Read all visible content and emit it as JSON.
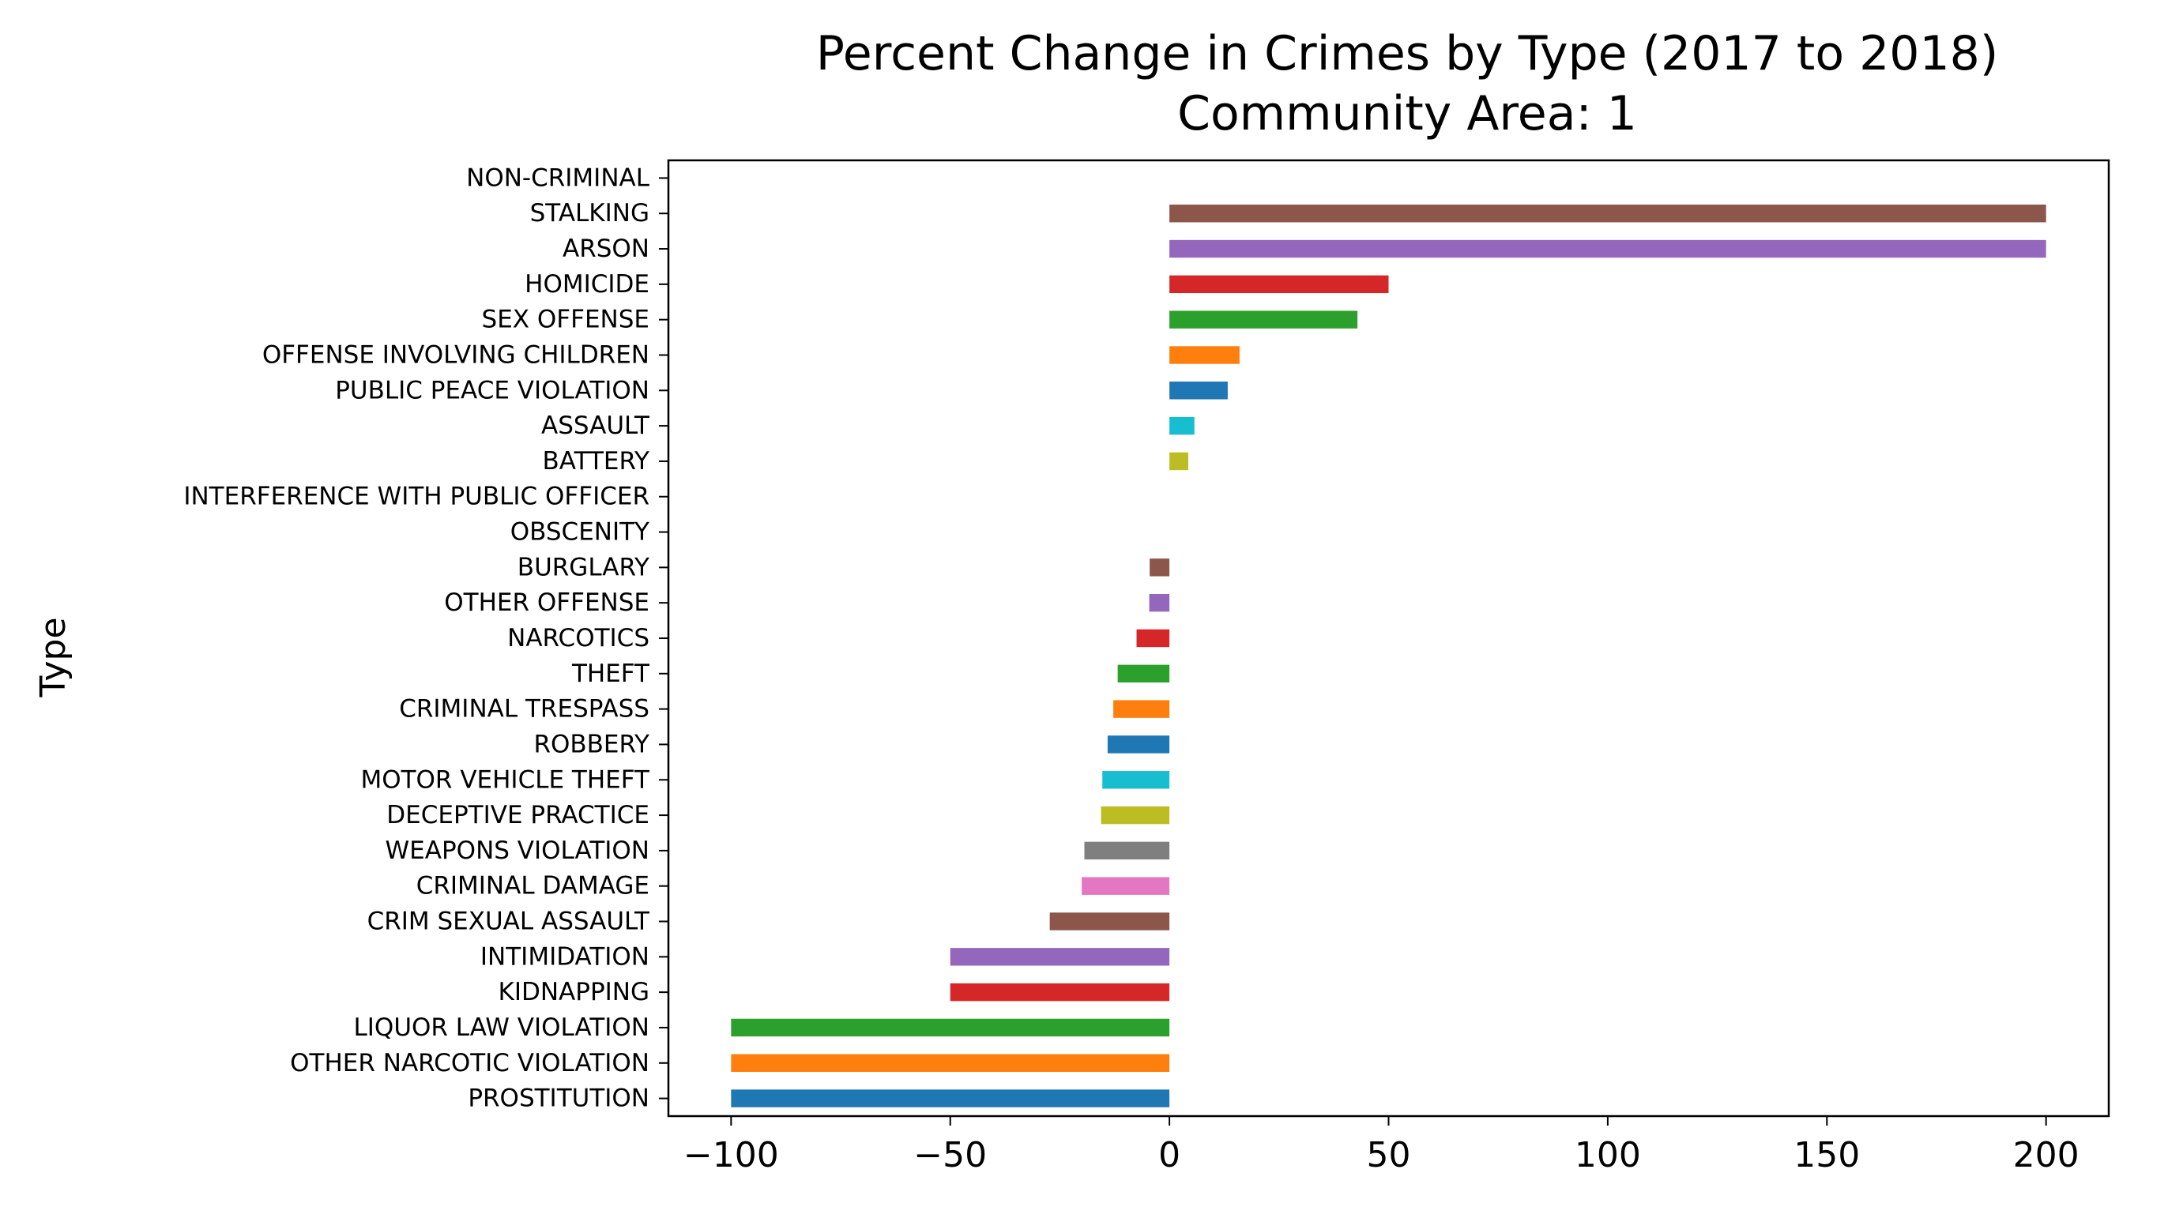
{
  "chart_data": {
    "type": "bar",
    "orientation": "horizontal",
    "title": "Percent Change in Crimes by Type (2017 to 2018)\nCommunity Area: 1",
    "title_lines": [
      "Percent Change in Crimes by Type (2017 to 2018)",
      "Community Area: 1"
    ],
    "xlabel": "",
    "ylabel": "Type",
    "xlim": [
      -114.3,
      214.3
    ],
    "xticks": [
      -100,
      -50,
      0,
      50,
      100,
      150,
      200
    ],
    "xtick_labels": [
      "−100",
      "−50",
      "0",
      "50",
      "100",
      "150",
      "200"
    ],
    "grid": false,
    "legend": "none",
    "categories": [
      "PROSTITUTION",
      "OTHER NARCOTIC VIOLATION",
      "LIQUOR LAW VIOLATION",
      "KIDNAPPING",
      "INTIMIDATION",
      "CRIM SEXUAL ASSAULT",
      "CRIMINAL DAMAGE",
      "WEAPONS VIOLATION",
      "DECEPTIVE PRACTICE",
      "MOTOR VEHICLE THEFT",
      "ROBBERY",
      "CRIMINAL TRESPASS",
      "THEFT",
      "NARCOTICS",
      "OTHER OFFENSE",
      "BURGLARY",
      "OBSCENITY",
      "INTERFERENCE WITH PUBLIC OFFICER",
      "BATTERY",
      "ASSAULT",
      "PUBLIC PEACE VIOLATION",
      "OFFENSE INVOLVING CHILDREN",
      "SEX OFFENSE",
      "HOMICIDE",
      "ARSON",
      "STALKING",
      "NON-CRIMINAL"
    ],
    "values": [
      -100,
      -100,
      -100,
      -50,
      -50,
      -27.3,
      -20,
      -19.4,
      -15.6,
      -15.3,
      -14.1,
      -12.8,
      -11.8,
      -7.5,
      -4.6,
      -4.5,
      0,
      0,
      4.3,
      5.7,
      13.3,
      16,
      42.9,
      50,
      200,
      200,
      0
    ],
    "colors": [
      "#1f77b4",
      "#ff7f0e",
      "#2ca02c",
      "#d62728",
      "#9467bd",
      "#8c564b",
      "#e377c2",
      "#7f7f7f",
      "#bcbd22",
      "#17becf"
    ]
  }
}
